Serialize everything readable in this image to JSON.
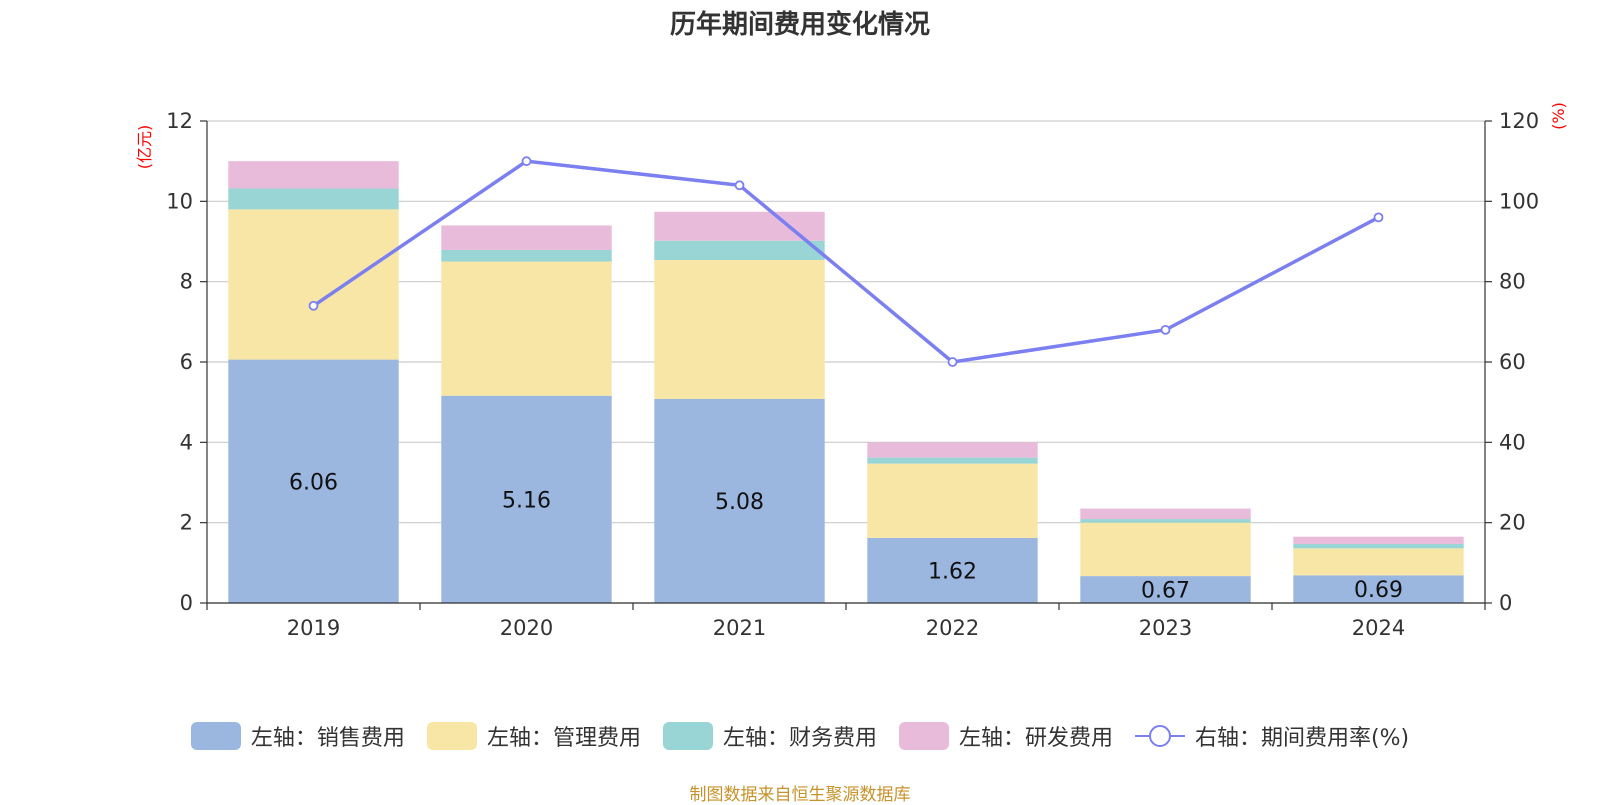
{
  "chart_data": {
    "type": "bar",
    "stacked": true,
    "title": "历年期间费用变化情况",
    "categories": [
      "2019",
      "2020",
      "2021",
      "2022",
      "2023",
      "2024"
    ],
    "left_axis": {
      "unit": "(亿元)",
      "ylim": [
        0,
        12
      ],
      "ticks": [
        0,
        2,
        4,
        6,
        8,
        10,
        12
      ]
    },
    "right_axis": {
      "unit": "(%)",
      "ylim": [
        0,
        120
      ],
      "ticks": [
        0,
        20,
        40,
        60,
        80,
        100,
        120
      ]
    },
    "series": [
      {
        "name": "左轴：销售费用",
        "color": "#9bb7e0",
        "axis": "left",
        "values": [
          6.06,
          5.16,
          5.08,
          1.62,
          0.67,
          0.69
        ],
        "labels": [
          "6.06",
          "5.16",
          "5.08",
          "1.62",
          "0.67",
          "0.69"
        ]
      },
      {
        "name": "左轴：管理费用",
        "color": "#f8e6a6",
        "axis": "left",
        "values": [
          3.74,
          3.34,
          3.46,
          1.85,
          1.33,
          0.67
        ]
      },
      {
        "name": "左轴：财务费用",
        "color": "#99d5d4",
        "axis": "left",
        "values": [
          0.52,
          0.29,
          0.48,
          0.15,
          0.09,
          0.11
        ]
      },
      {
        "name": "左轴：研发费用",
        "color": "#e8bbda",
        "axis": "left",
        "values": [
          0.68,
          0.61,
          0.72,
          0.38,
          0.26,
          0.18
        ]
      },
      {
        "name": "右轴：期间费用率(%)",
        "color": "#7b7ff0",
        "axis": "right",
        "type": "line",
        "values": [
          74,
          110,
          104,
          60,
          68,
          96
        ]
      }
    ],
    "grid": true,
    "legend_position": "bottom"
  },
  "source_note": "制图数据来自恒生聚源数据库"
}
